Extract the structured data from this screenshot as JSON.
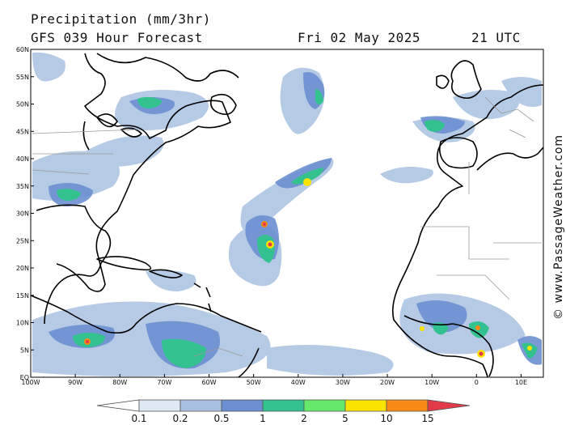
{
  "header": {
    "title": "Precipitation (mm/3hr)",
    "subtitle": "GFS 039 Hour Forecast",
    "date": "Fri 02 May 2025",
    "time": "21 UTC"
  },
  "credit": "© www.PassageWeather.com",
  "map": {
    "projection": "equirectangular",
    "lon_range": [
      -100,
      15
    ],
    "lat_range": [
      0,
      60
    ],
    "lat_labels": [
      "60N",
      "55N",
      "50N",
      "45N",
      "40N",
      "35N",
      "30N",
      "25N",
      "20N",
      "15N",
      "10N",
      "5N",
      "EQ"
    ],
    "lat_values": [
      60,
      55,
      50,
      45,
      40,
      35,
      30,
      25,
      20,
      15,
      10,
      5,
      0
    ],
    "lon_labels": [
      "100W",
      "90W",
      "80W",
      "70W",
      "60W",
      "50W",
      "40W",
      "30W",
      "20W",
      "10W",
      "0",
      "10E"
    ],
    "lon_values": [
      -100,
      -90,
      -80,
      -70,
      -60,
      -50,
      -40,
      -30,
      -20,
      -10,
      0,
      10
    ],
    "land_color": "#ffffff",
    "coast_color": "#000000",
    "border_color": "#9a9a9a"
  },
  "legend": {
    "labels": [
      "0.1",
      "0.2",
      "0.5",
      "1",
      "2",
      "5",
      "10",
      "15"
    ],
    "colors": [
      "#ffffff",
      "#dfe9f6",
      "#a9c1e0",
      "#6b8fd0",
      "#33c190",
      "#66e86a",
      "#fbe300",
      "#f78a14",
      "#e23a48"
    ]
  }
}
